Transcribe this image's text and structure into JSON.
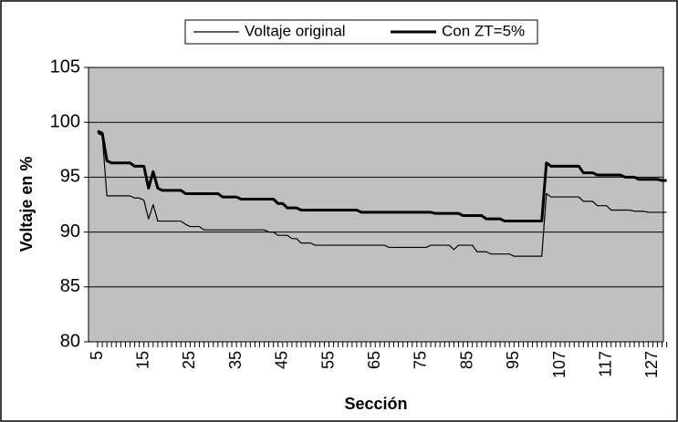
{
  "chart_data": {
    "type": "line",
    "y_label": "Voltaje en %",
    "x_label": "Sección",
    "categories": [
      5,
      null,
      null,
      null,
      null,
      null,
      null,
      null,
      null,
      null,
      15,
      null,
      null,
      null,
      null,
      null,
      null,
      null,
      null,
      null,
      25,
      null,
      null,
      null,
      null,
      null,
      null,
      null,
      null,
      null,
      35,
      null,
      null,
      null,
      null,
      null,
      null,
      null,
      null,
      null,
      45,
      null,
      null,
      null,
      null,
      null,
      null,
      null,
      null,
      null,
      55,
      null,
      null,
      null,
      null,
      null,
      null,
      null,
      null,
      null,
      65,
      null,
      null,
      null,
      null,
      null,
      null,
      null,
      null,
      null,
      75,
      null,
      null,
      null,
      null,
      null,
      null,
      null,
      null,
      null,
      85,
      null,
      null,
      null,
      null,
      null,
      null,
      null,
      null,
      null,
      95,
      null,
      null,
      null,
      null,
      null,
      null,
      null,
      null,
      null,
      107,
      null,
      null,
      null,
      null,
      null,
      null,
      null,
      null,
      null,
      117,
      null,
      null,
      null,
      null,
      null,
      null,
      null,
      null,
      null,
      127,
      null,
      null,
      null
    ],
    "series": [
      {
        "name": "Voltaje original",
        "color": "#000000",
        "line_width": 1.2,
        "values": [
          99,
          98.8,
          93.3,
          93.3,
          93.3,
          93.3,
          93.3,
          93.3,
          93.1,
          93.1,
          92.9,
          91.2,
          92.5,
          91,
          91,
          91,
          91,
          91,
          91,
          90.7,
          90.5,
          90.5,
          90.5,
          90.2,
          90.2,
          90.2,
          90.2,
          90.2,
          90.2,
          90.2,
          90.2,
          90.2,
          90.2,
          90.2,
          90.2,
          90.2,
          90.2,
          90,
          90,
          89.7,
          89.7,
          89.7,
          89.4,
          89.4,
          89,
          89,
          89,
          88.8,
          88.8,
          88.8,
          88.8,
          88.8,
          88.8,
          88.8,
          88.8,
          88.8,
          88.8,
          88.8,
          88.8,
          88.8,
          88.8,
          88.8,
          88.8,
          88.6,
          88.6,
          88.6,
          88.6,
          88.6,
          88.6,
          88.6,
          88.6,
          88.6,
          88.8,
          88.8,
          88.8,
          88.8,
          88.8,
          88.4,
          88.8,
          88.8,
          88.8,
          88.8,
          88.2,
          88.2,
          88.2,
          88,
          88,
          88,
          88,
          88,
          87.8,
          87.8,
          87.8,
          87.8,
          87.8,
          87.8,
          87.8,
          93.5,
          93.2,
          93.2,
          93.2,
          93.2,
          93.2,
          93.2,
          93.2,
          92.8,
          92.8,
          92.8,
          92.4,
          92.4,
          92.4,
          92,
          92,
          92,
          92,
          92,
          91.9,
          91.9,
          91.9,
          91.8,
          91.8,
          91.8,
          91.8,
          91.8
        ]
      },
      {
        "name": "Con ZT=5%",
        "color": "#000000",
        "line_width": 3,
        "values": [
          99.2,
          99,
          96.5,
          96.3,
          96.3,
          96.3,
          96.3,
          96.3,
          96,
          96,
          96,
          94,
          95.5,
          94,
          93.8,
          93.8,
          93.8,
          93.8,
          93.8,
          93.5,
          93.5,
          93.5,
          93.5,
          93.5,
          93.5,
          93.5,
          93.5,
          93.2,
          93.2,
          93.2,
          93.2,
          93,
          93,
          93,
          93,
          93,
          93,
          93,
          93,
          92.6,
          92.6,
          92.2,
          92.2,
          92.2,
          92,
          92,
          92,
          92,
          92,
          92,
          92,
          92,
          92,
          92,
          92,
          92,
          92,
          91.8,
          91.8,
          91.8,
          91.8,
          91.8,
          91.8,
          91.8,
          91.8,
          91.8,
          91.8,
          91.8,
          91.8,
          91.8,
          91.8,
          91.8,
          91.8,
          91.7,
          91.7,
          91.7,
          91.7,
          91.7,
          91.7,
          91.5,
          91.5,
          91.5,
          91.5,
          91.5,
          91.2,
          91.2,
          91.2,
          91.2,
          91,
          91,
          91,
          91,
          91,
          91,
          91,
          91,
          91,
          96.3,
          96,
          96,
          96,
          96,
          96,
          96,
          96,
          95.4,
          95.4,
          95.4,
          95.2,
          95.2,
          95.2,
          95.2,
          95.2,
          95.2,
          95,
          95,
          95,
          94.8,
          94.8,
          94.8,
          94.8,
          94.8,
          94.7,
          94.7
        ]
      }
    ],
    "ylim": [
      80,
      105
    ],
    "yticks": [
      80,
      85,
      90,
      95,
      100,
      105
    ],
    "grid": true,
    "legend": "top"
  }
}
